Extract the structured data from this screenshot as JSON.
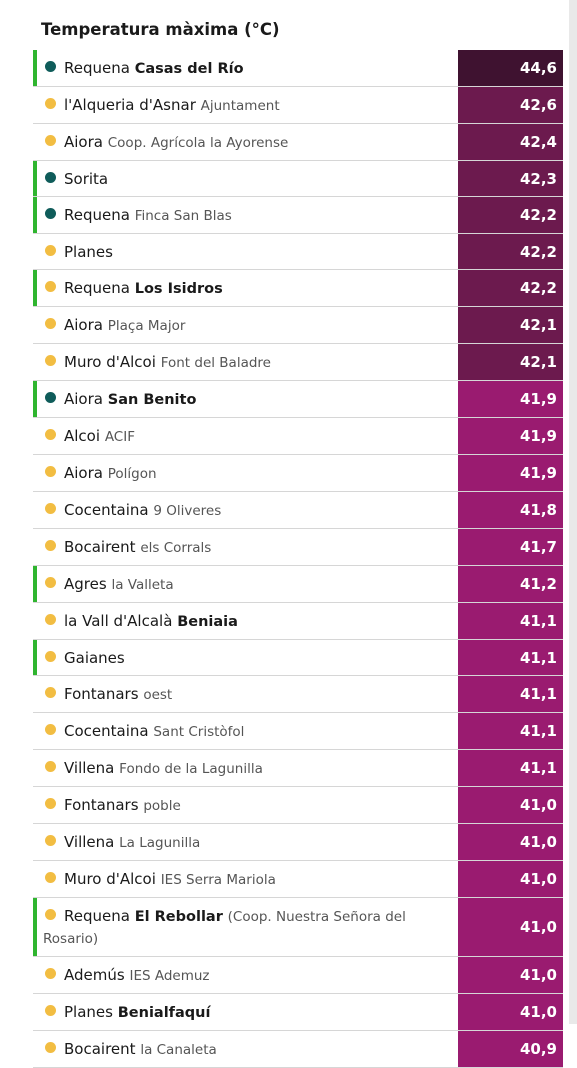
{
  "title": "Temperatura màxima (°C)",
  "rows": [
    {
      "place": "Requena",
      "station": "Casas del Río",
      "station_bold": true,
      "value": "44,6",
      "dot": "#0f5c5a",
      "marker": true,
      "cell_color": "#3f1230"
    },
    {
      "place": "l'Alqueria d'Asnar",
      "station": "Ajuntament",
      "station_bold": false,
      "value": "42,6",
      "dot": "#f2bd42",
      "marker": false,
      "cell_color": "#6c1a4e"
    },
    {
      "place": "Aiora",
      "station": "Coop. Agrícola la Ayorense",
      "station_bold": false,
      "value": "42,4",
      "dot": "#f2bd42",
      "marker": false,
      "cell_color": "#6c1a4e"
    },
    {
      "place": "Sorita",
      "value": "42,3",
      "dot": "#0f5c5a",
      "marker": true,
      "cell_color": "#6c1a4e"
    },
    {
      "place": "Requena",
      "station": "Finca San Blas",
      "station_bold": false,
      "value": "42,2",
      "dot": "#0f5c5a",
      "marker": true,
      "cell_color": "#6c1a4e"
    },
    {
      "place": "Planes",
      "value": "42,2",
      "dot": "#f2bd42",
      "marker": false,
      "cell_color": "#6c1a4e"
    },
    {
      "place": "Requena",
      "station": "Los Isidros",
      "station_bold": true,
      "value": "42,2",
      "dot": "#f2bd42",
      "marker": true,
      "cell_color": "#6c1a4e"
    },
    {
      "place": "Aiora",
      "station": "Plaça Major",
      "station_bold": false,
      "value": "42,1",
      "dot": "#f2bd42",
      "marker": false,
      "cell_color": "#6c1a4e"
    },
    {
      "place": "Muro d'Alcoi",
      "station": "Font del Baladre",
      "station_bold": false,
      "value": "42,1",
      "dot": "#f2bd42",
      "marker": false,
      "cell_color": "#6c1a4e"
    },
    {
      "place": "Aiora",
      "station": "San Benito",
      "station_bold": true,
      "value": "41,9",
      "dot": "#0f5c5a",
      "marker": true,
      "cell_color": "#9a1b70"
    },
    {
      "place": "Alcoi",
      "station": "ACIF",
      "station_bold": false,
      "value": "41,9",
      "dot": "#f2bd42",
      "marker": false,
      "cell_color": "#9a1b70"
    },
    {
      "place": "Aiora",
      "station": "Polígon",
      "station_bold": false,
      "value": "41,9",
      "dot": "#f2bd42",
      "marker": false,
      "cell_color": "#9a1b70"
    },
    {
      "place": "Cocentaina",
      "station": "9 Oliveres",
      "station_bold": false,
      "value": "41,8",
      "dot": "#f2bd42",
      "marker": false,
      "cell_color": "#9a1b70"
    },
    {
      "place": "Bocairent",
      "station": "els Corrals",
      "station_bold": false,
      "value": "41,7",
      "dot": "#f2bd42",
      "marker": false,
      "cell_color": "#9a1b70"
    },
    {
      "place": "Agres",
      "station": "la Valleta",
      "station_bold": false,
      "value": "41,2",
      "dot": "#f2bd42",
      "marker": true,
      "cell_color": "#9a1b70"
    },
    {
      "place": "la Vall d'Alcalà",
      "station": "Beniaia",
      "station_bold": true,
      "value": "41,1",
      "dot": "#f2bd42",
      "marker": false,
      "cell_color": "#9a1b70"
    },
    {
      "place": "Gaianes",
      "value": "41,1",
      "dot": "#f2bd42",
      "marker": true,
      "cell_color": "#9a1b70"
    },
    {
      "place": "Fontanars",
      "station": "oest",
      "station_bold": false,
      "value": "41,1",
      "dot": "#f2bd42",
      "marker": false,
      "cell_color": "#9a1b70"
    },
    {
      "place": "Cocentaina",
      "station": "Sant Cristòfol",
      "station_bold": false,
      "value": "41,1",
      "dot": "#f2bd42",
      "marker": false,
      "cell_color": "#9a1b70"
    },
    {
      "place": "Villena",
      "station": "Fondo de la Lagunilla",
      "station_bold": false,
      "value": "41,1",
      "dot": "#f2bd42",
      "marker": false,
      "cell_color": "#9a1b70"
    },
    {
      "place": "Fontanars",
      "station": "poble",
      "station_bold": false,
      "value": "41,0",
      "dot": "#f2bd42",
      "marker": false,
      "cell_color": "#9a1b70"
    },
    {
      "place": "Villena",
      "station": "La Lagunilla",
      "station_bold": false,
      "value": "41,0",
      "dot": "#f2bd42",
      "marker": false,
      "cell_color": "#9a1b70"
    },
    {
      "place": "Muro d'Alcoi",
      "station": "IES Serra Mariola",
      "station_bold": false,
      "value": "41,0",
      "dot": "#f2bd42",
      "marker": false,
      "cell_color": "#9a1b70"
    },
    {
      "place": "Requena",
      "station": "El Rebollar",
      "station_bold": true,
      "note": "(Coop. Nuestra Señora del Rosario)",
      "value": "41,0",
      "dot": "#f2bd42",
      "marker": true,
      "cell_color": "#9a1b70"
    },
    {
      "place": "Ademús",
      "station": "IES Ademuz",
      "station_bold": false,
      "value": "41,0",
      "dot": "#f2bd42",
      "marker": false,
      "cell_color": "#9a1b70"
    },
    {
      "place": "Planes",
      "station": "Benialfaquí",
      "station_bold": true,
      "value": "41,0",
      "dot": "#f2bd42",
      "marker": false,
      "cell_color": "#9a1b70"
    },
    {
      "place": "Bocairent",
      "station": "la Canaleta",
      "station_bold": false,
      "value": "40,9",
      "dot": "#f2bd42",
      "marker": false,
      "cell_color": "#9a1b70"
    }
  ]
}
